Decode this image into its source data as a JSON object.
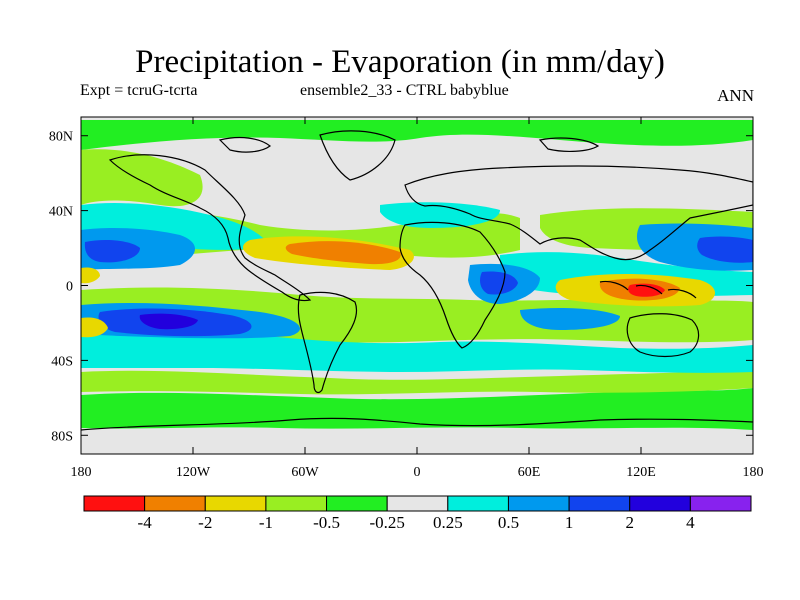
{
  "chart_data": {
    "type": "heatmap",
    "title": "Precipitation - Evaporation (in mm/day)",
    "subtitle_left": "Expt = tcruG-tcrta",
    "subtitle_center": "ensemble2_33 - CTRL babyblue",
    "subtitle_right": "ANN",
    "x_ticks": [
      "180",
      "120W",
      "60W",
      "0",
      "60E",
      "120E",
      "180"
    ],
    "y_ticks": [
      "80N",
      "40N",
      "0",
      "40S",
      "80S"
    ],
    "xlim": [
      -180,
      180
    ],
    "ylim": [
      -90,
      90
    ],
    "colorbar": {
      "colors": [
        "#ff1010",
        "#f08000",
        "#e8d800",
        "#99ee22",
        "#22ee22",
        "#e6e6e6",
        "#00eedd",
        "#0099ee",
        "#1144ee",
        "#2200dd",
        "#8822ee"
      ],
      "labels": [
        "-4",
        "-2",
        "-1",
        "-0.5",
        "-0.25",
        "0.25",
        "0.5",
        "1",
        "2",
        "4"
      ]
    }
  }
}
